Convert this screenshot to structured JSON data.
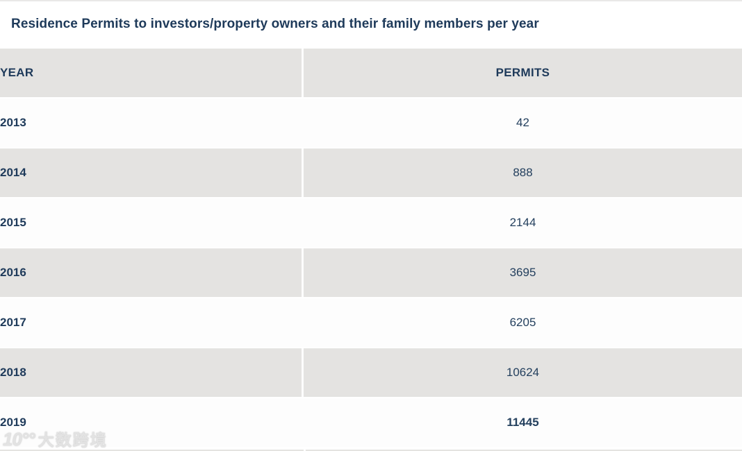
{
  "title": "Residence Permits to investors/property owners and their family members per year",
  "table": {
    "columns": [
      "YEAR",
      "PERMITS"
    ],
    "rows": [
      {
        "year": "2013",
        "permits": "42"
      },
      {
        "year": "2014",
        "permits": "888"
      },
      {
        "year": "2015",
        "permits": "2144"
      },
      {
        "year": "2016",
        "permits": "3695"
      },
      {
        "year": "2017",
        "permits": "6205"
      },
      {
        "year": "2018",
        "permits": "10624"
      },
      {
        "year": "2019",
        "permits": "11445"
      }
    ]
  },
  "watermark": {
    "logo": "10°°",
    "text": "大数跨境"
  },
  "colors": {
    "text_navy": "#1e3a5a",
    "row_gray": "#e4e3e1",
    "row_white": "#fdfdfd"
  },
  "chart_data": {
    "type": "table",
    "title": "Residence Permits to investors/property owners and their family members per year",
    "columns": [
      "YEAR",
      "PERMITS"
    ],
    "categories": [
      "2013",
      "2014",
      "2015",
      "2016",
      "2017",
      "2018",
      "2019"
    ],
    "values": [
      42,
      888,
      2144,
      3695,
      6205,
      10624,
      11445
    ],
    "highlight_bold_row": "2019"
  }
}
